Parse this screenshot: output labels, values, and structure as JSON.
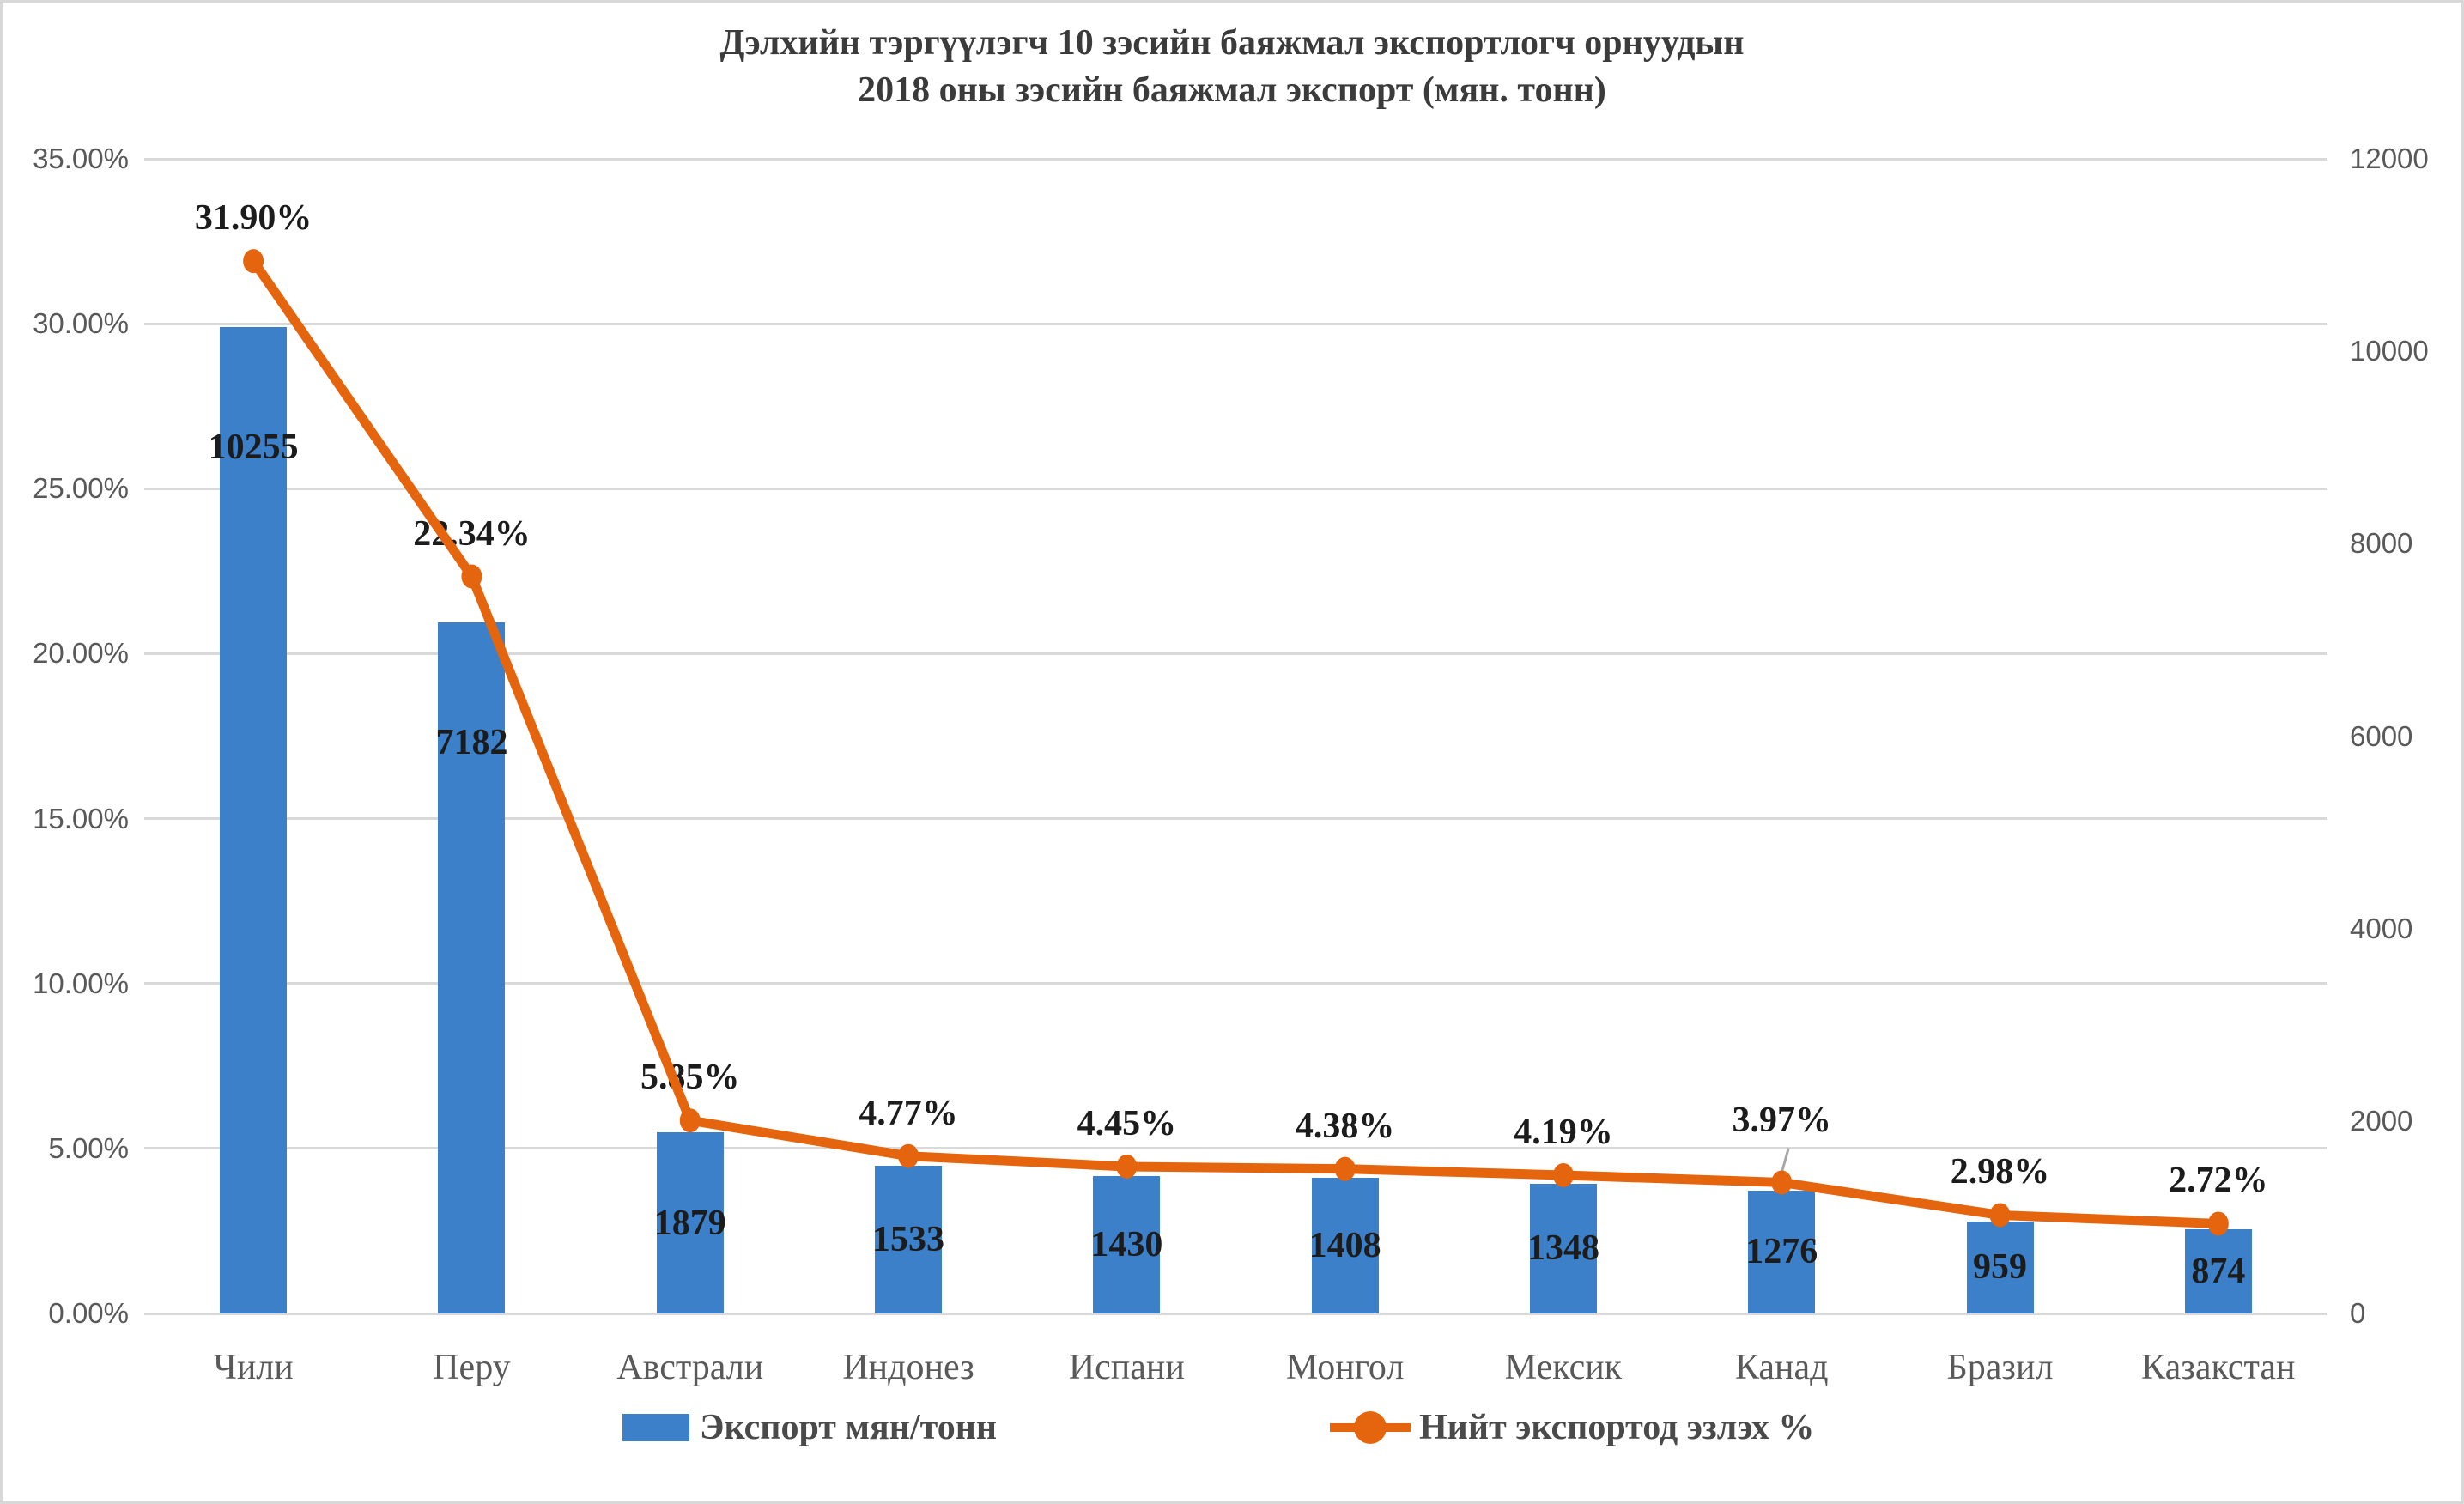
{
  "title": {
    "line1": "Дэлхийн  тэргүүлэгч 10  зэсийн баяжмал экспортлогч  орнуудын",
    "line2": "2018 оны зэсийн баяжмал экспорт  (мян. тонн)"
  },
  "legend": {
    "bars_label": "Экспорт мян/тонн",
    "line_label": "Нийт экспортод эзлэх %"
  },
  "axes": {
    "left_max": 35,
    "right_max": 12000,
    "left_ticks": [
      {
        "label": "35.00%",
        "value": 35
      },
      {
        "label": "30.00%",
        "value": 30
      },
      {
        "label": "25.00%",
        "value": 25
      },
      {
        "label": "20.00%",
        "value": 20
      },
      {
        "label": "15.00%",
        "value": 15
      },
      {
        "label": "10.00%",
        "value": 10
      },
      {
        "label": "5.00%",
        "value": 5
      },
      {
        "label": "0.00%",
        "value": 0
      }
    ],
    "right_ticks": [
      {
        "label": "12000",
        "value": 12000
      },
      {
        "label": "10000",
        "value": 10000
      },
      {
        "label": "8000",
        "value": 8000
      },
      {
        "label": "6000",
        "value": 6000
      },
      {
        "label": "4000",
        "value": 4000
      },
      {
        "label": "2000",
        "value": 2000
      },
      {
        "label": "0",
        "value": 0
      }
    ]
  },
  "chart_data": {
    "type": "combo",
    "title": "Дэлхийн тэргүүлэгч 10 зэсийн баяжмал экспортлогч орнуудын 2018 оны зэсийн баяжмал экспорт (мян. тонн)",
    "categories": [
      "Чили",
      "Перу",
      "Австрали",
      "Индонез",
      "Испани",
      "Монгол",
      "Мексик",
      "Канад",
      "Бразил",
      "Казакстан"
    ],
    "series": [
      {
        "name": "Экспорт мян/тонн",
        "type": "bar",
        "axis": "right",
        "color": "#3b80c8",
        "values": [
          10255,
          7182,
          1879,
          1533,
          1430,
          1408,
          1348,
          1276,
          959,
          874
        ],
        "labels": [
          "10255",
          "7182",
          "1879",
          "1533",
          "1430",
          "1408",
          "1348",
          "1276",
          "959",
          "874"
        ]
      },
      {
        "name": "Нийт экспортод эзлэх %",
        "type": "line",
        "axis": "left",
        "color": "#e5650e",
        "values": [
          31.9,
          22.34,
          5.85,
          4.77,
          4.45,
          4.38,
          4.19,
          3.97,
          2.98,
          2.72
        ],
        "labels": [
          "31.90%",
          "22.34%",
          "5.85%",
          "4.77%",
          "4.45%",
          "4.38%",
          "4.19%",
          "3.97%",
          "2.98%",
          "2.72%"
        ]
      }
    ],
    "callout_index": 7,
    "ylim_left": [
      0,
      0.35
    ],
    "ylim_right": [
      0,
      12000
    ],
    "grid": true,
    "legend_position": "bottom"
  },
  "colors": {
    "bar": "#3b80c8",
    "line": "#e5650e",
    "gridline": "#d9d9d9",
    "axis_text": "#595959",
    "title_text": "#3b3b3b",
    "data_label_text": "#1c1c1c",
    "leader_line": "#a8a8a8",
    "border": "#d8d8d8"
  }
}
